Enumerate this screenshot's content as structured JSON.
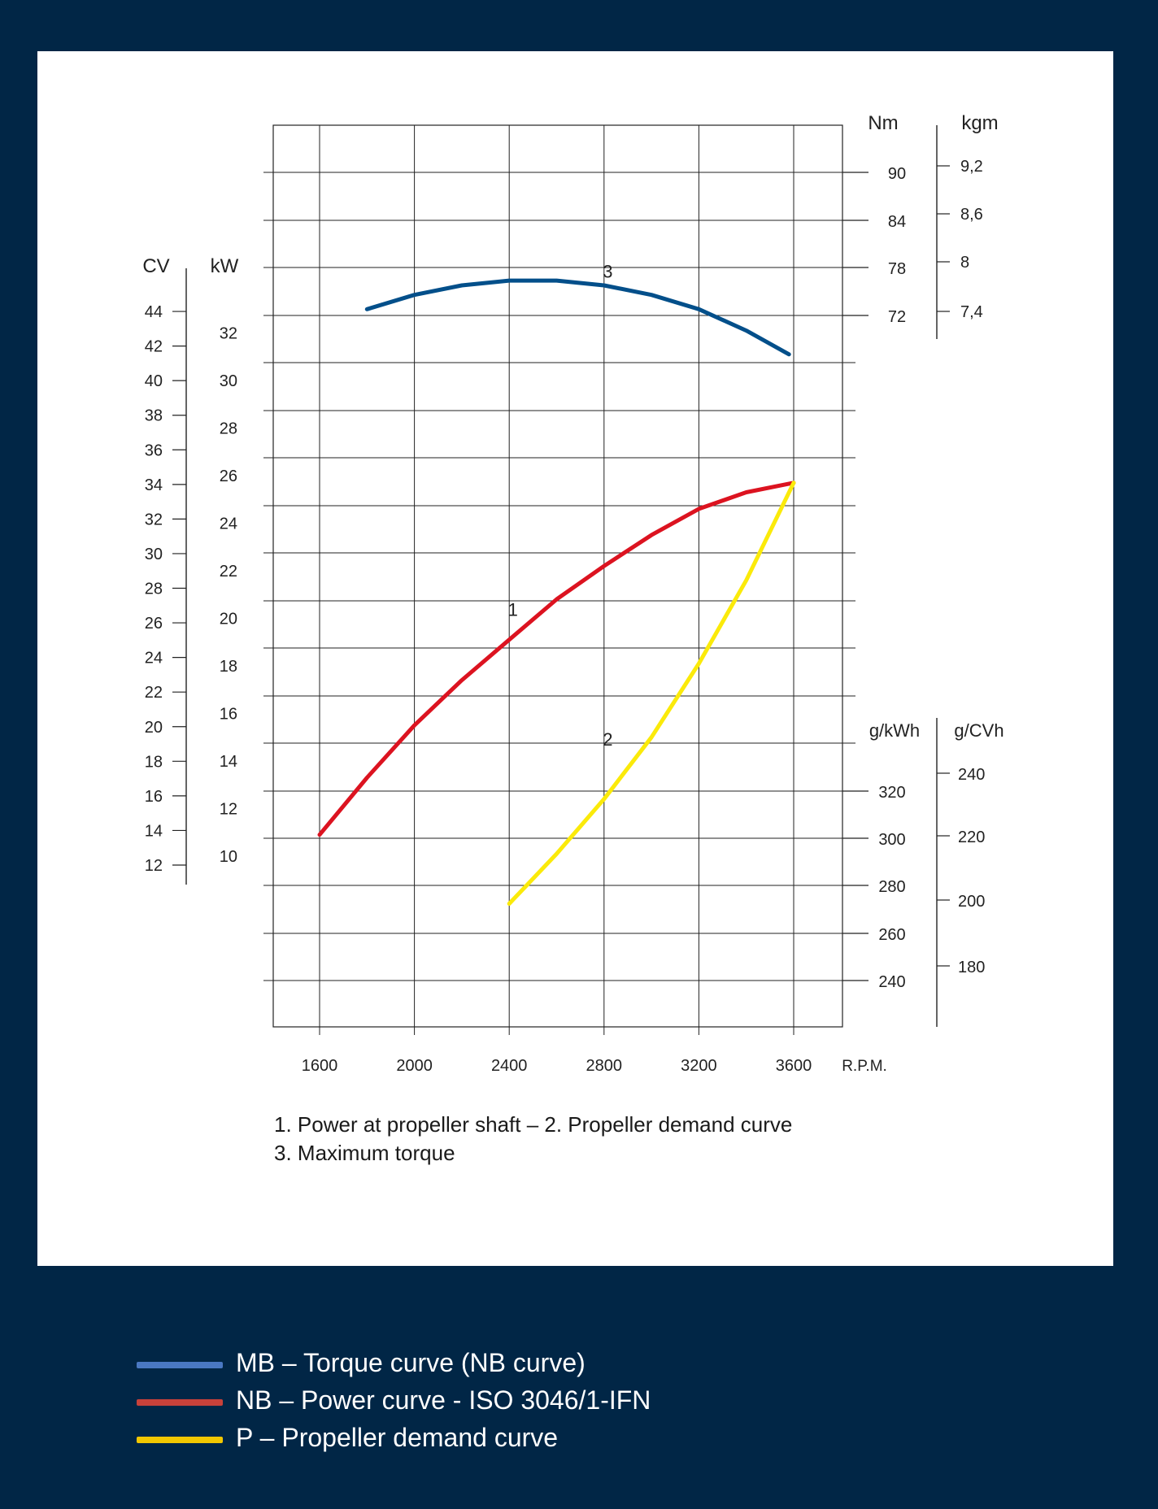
{
  "chart_data": {
    "type": "line",
    "x_axis": {
      "label": "R.P.M.",
      "ticks": [
        1600,
        2000,
        2400,
        2800,
        3200,
        3600
      ]
    },
    "axes": {
      "cv": {
        "label": "CV",
        "ticks": [
          12,
          14,
          16,
          18,
          20,
          22,
          24,
          26,
          28,
          30,
          32,
          34,
          36,
          38,
          40,
          42,
          44
        ]
      },
      "kw": {
        "label": "kW",
        "ticks": [
          10,
          12,
          14,
          16,
          18,
          20,
          22,
          24,
          26,
          28,
          30,
          32
        ]
      },
      "nm": {
        "label": "Nm",
        "ticks": [
          72,
          78,
          84,
          90
        ]
      },
      "kgm": {
        "label": "kgm",
        "ticks": [
          "7,4",
          "8",
          "8,6",
          "9,2"
        ]
      },
      "gkwh": {
        "label": "g/kWh",
        "ticks": [
          240,
          260,
          280,
          300,
          320
        ]
      },
      "gcvh": {
        "label": "g/CVh",
        "ticks": [
          180,
          200,
          220,
          240
        ]
      }
    },
    "series": [
      {
        "name": "MB – Torque curve (NB curve)",
        "number": "3",
        "axis": "kw",
        "color": "#034f8a",
        "points": [
          [
            1800,
            33.0
          ],
          [
            2000,
            33.6
          ],
          [
            2200,
            34.0
          ],
          [
            2400,
            34.2
          ],
          [
            2600,
            34.2
          ],
          [
            2800,
            34.0
          ],
          [
            3000,
            33.6
          ],
          [
            3200,
            33.0
          ],
          [
            3400,
            32.1
          ],
          [
            3580,
            31.1
          ]
        ]
      },
      {
        "name": "NB – Power curve - ISO 3046/1-IFN",
        "number": "1",
        "axis": "kw",
        "color": "#dc1320",
        "points": [
          [
            1600,
            10.9
          ],
          [
            1800,
            13.3
          ],
          [
            2000,
            15.5
          ],
          [
            2200,
            17.4
          ],
          [
            2400,
            19.1
          ],
          [
            2600,
            20.8
          ],
          [
            2800,
            22.2
          ],
          [
            3000,
            23.5
          ],
          [
            3200,
            24.6
          ],
          [
            3400,
            25.3
          ],
          [
            3600,
            25.7
          ]
        ]
      },
      {
        "name": "P – Propeller demand curve",
        "number": "2",
        "axis": "kw",
        "color": "#fbea0a",
        "points": [
          [
            2400,
            8.0
          ],
          [
            2600,
            10.1
          ],
          [
            2800,
            12.4
          ],
          [
            3000,
            15.0
          ],
          [
            3200,
            18.1
          ],
          [
            3400,
            21.6
          ],
          [
            3600,
            25.7
          ]
        ]
      }
    ],
    "grid": true
  },
  "captions": {
    "line1": "1. Power at propeller shaft –  2. Propeller demand curve",
    "line2": "3. Maximum torque"
  },
  "legend": [
    {
      "label": "MB – Torque curve (NB curve)",
      "color": "#4a78c2"
    },
    {
      "label": "NB – Power curve - ISO 3046/1-IFN",
      "color": "#c8413a"
    },
    {
      "label": "P – Propeller demand curve",
      "color": "#f2c700"
    }
  ]
}
